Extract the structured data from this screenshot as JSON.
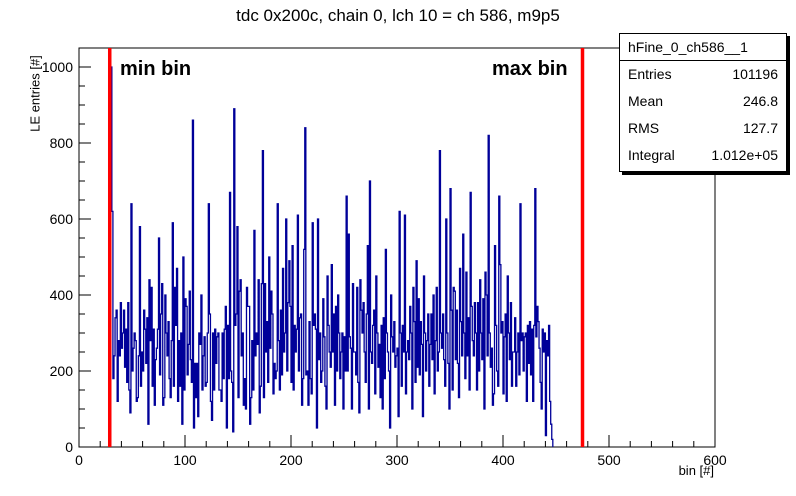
{
  "chart_data": {
    "type": "bar",
    "title": "tdc 0x200c, chain 0, lch 10 = ch 586, m9p5",
    "xlabel": "bin [#]",
    "ylabel": "LE entries [#]",
    "xlim": [
      0,
      600
    ],
    "ylim": [
      0,
      1050
    ],
    "xticks": [
      "0",
      "100",
      "200",
      "300",
      "400",
      "500",
      "600"
    ],
    "yticks": [
      "0",
      "200",
      "400",
      "600",
      "800",
      "1000"
    ],
    "series_color": "#000099",
    "marker_color": "#ff0000",
    "markers": [
      {
        "label": "min bin",
        "x": 29
      },
      {
        "label": "max bin",
        "x": 475
      }
    ],
    "bin_start": 30,
    "values": [
      1000,
      620,
      180,
      240,
      340,
      360,
      120,
      280,
      240,
      380,
      260,
      300,
      360,
      210,
      310,
      170,
      380,
      150,
      90,
      640,
      200,
      260,
      300,
      280,
      120,
      130,
      240,
      580,
      160,
      250,
      200,
      360,
      310,
      220,
      340,
      60,
      440,
      280,
      420,
      160,
      310,
      110,
      230,
      260,
      310,
      550,
      190,
      350,
      430,
      110,
      130,
      400,
      300,
      240,
      330,
      180,
      130,
      280,
      590,
      160,
      420,
      320,
      470,
      120,
      280,
      160,
      300,
      60,
      500,
      150,
      390,
      370,
      190,
      270,
      410,
      230,
      170,
      860,
      50,
      220,
      130,
      220,
      80,
      300,
      270,
      400,
      150,
      240,
      290,
      160,
      170,
      300,
      640,
      350,
      120,
      70,
      300,
      150,
      310,
      220,
      290,
      300,
      150,
      150,
      120,
      300,
      180,
      310,
      370,
      50,
      320,
      180,
      670,
      200,
      170,
      40,
      890,
      320,
      350,
      580,
      130,
      410,
      440,
      240,
      300,
      110,
      180,
      100,
      420,
      370,
      370,
      60,
      130,
      280,
      150,
      570,
      240,
      300,
      270,
      440,
      90,
      160,
      430,
      780,
      130,
      430,
      250,
      330,
      170,
      500,
      260,
      410,
      350,
      140,
      220,
      180,
      200,
      640,
      280,
      150,
      360,
      190,
      470,
      250,
      300,
      600,
      200,
      380,
      490,
      370,
      170,
      530,
      150,
      320,
      250,
      310,
      610,
      200,
      340,
      350,
      110,
      180,
      520,
      840,
      190,
      200,
      110,
      330,
      180,
      140,
      590,
      320,
      350,
      310,
      50,
      600,
      230,
      300,
      170,
      200,
      390,
      290,
      160,
      100,
      450,
      320,
      250,
      210,
      480,
      250,
      350,
      110,
      370,
      200,
      400,
      300,
      180,
      250,
      300,
      100,
      290,
      200,
      660,
      200,
      560,
      290,
      260,
      100,
      430,
      250,
      250,
      190,
      420,
      170,
      90,
      440,
      360,
      300,
      380,
      250,
      170,
      350,
      530,
      100,
      700,
      250,
      220,
      320,
      360,
      140,
      450,
      300,
      210,
      270,
      130,
      320,
      100,
      340,
      180,
      520,
      300,
      250,
      200,
      50,
      400,
      290,
      250,
      330,
      210,
      240,
      260,
      80,
      620,
      300,
      160,
      320,
      250,
      610,
      140,
      250,
      280,
      230,
      370,
      300,
      100,
      420,
      330,
      170,
      490,
      210,
      390,
      190,
      330,
      270,
      80,
      450,
      300,
      200,
      280,
      350,
      160,
      270,
      350,
      230,
      400,
      140,
      280,
      420,
      200,
      250,
      780,
      300,
      260,
      350,
      230,
      160,
      600,
      300,
      220,
      100,
      680,
      360,
      150,
      420,
      410,
      230,
      360,
      220,
      130,
      470,
      330,
      240,
      560,
      300,
      180,
      460,
      240,
      340,
      150,
      670,
      370,
      280,
      240,
      380,
      300,
      150,
      380,
      200,
      440,
      300,
      230,
      390,
      100,
      460,
      400,
      240,
      820,
      300,
      210,
      260,
      110,
      140,
      530,
      320,
      200,
      160,
      660,
      480,
      300,
      330,
      140,
      290,
      350,
      120,
      450,
      300,
      230,
      380,
      160,
      250,
      250,
      340,
      160,
      250,
      300,
      190,
      640,
      280,
      300,
      200,
      290,
      300,
      120,
      320,
      220,
      330,
      190,
      310,
      120,
      320,
      680,
      290,
      370,
      330,
      260,
      170,
      100,
      310,
      250,
      300,
      30,
      280,
      240,
      320,
      120,
      60,
      20
    ]
  },
  "stats": {
    "name": "hFine_0_ch586__1",
    "rows": [
      {
        "label": "Entries",
        "value": "101196"
      },
      {
        "label": "Mean",
        "value": "246.8"
      },
      {
        "label": "RMS",
        "value": "127.7"
      },
      {
        "label": "Integral",
        "value": "1.012e+05"
      }
    ]
  }
}
